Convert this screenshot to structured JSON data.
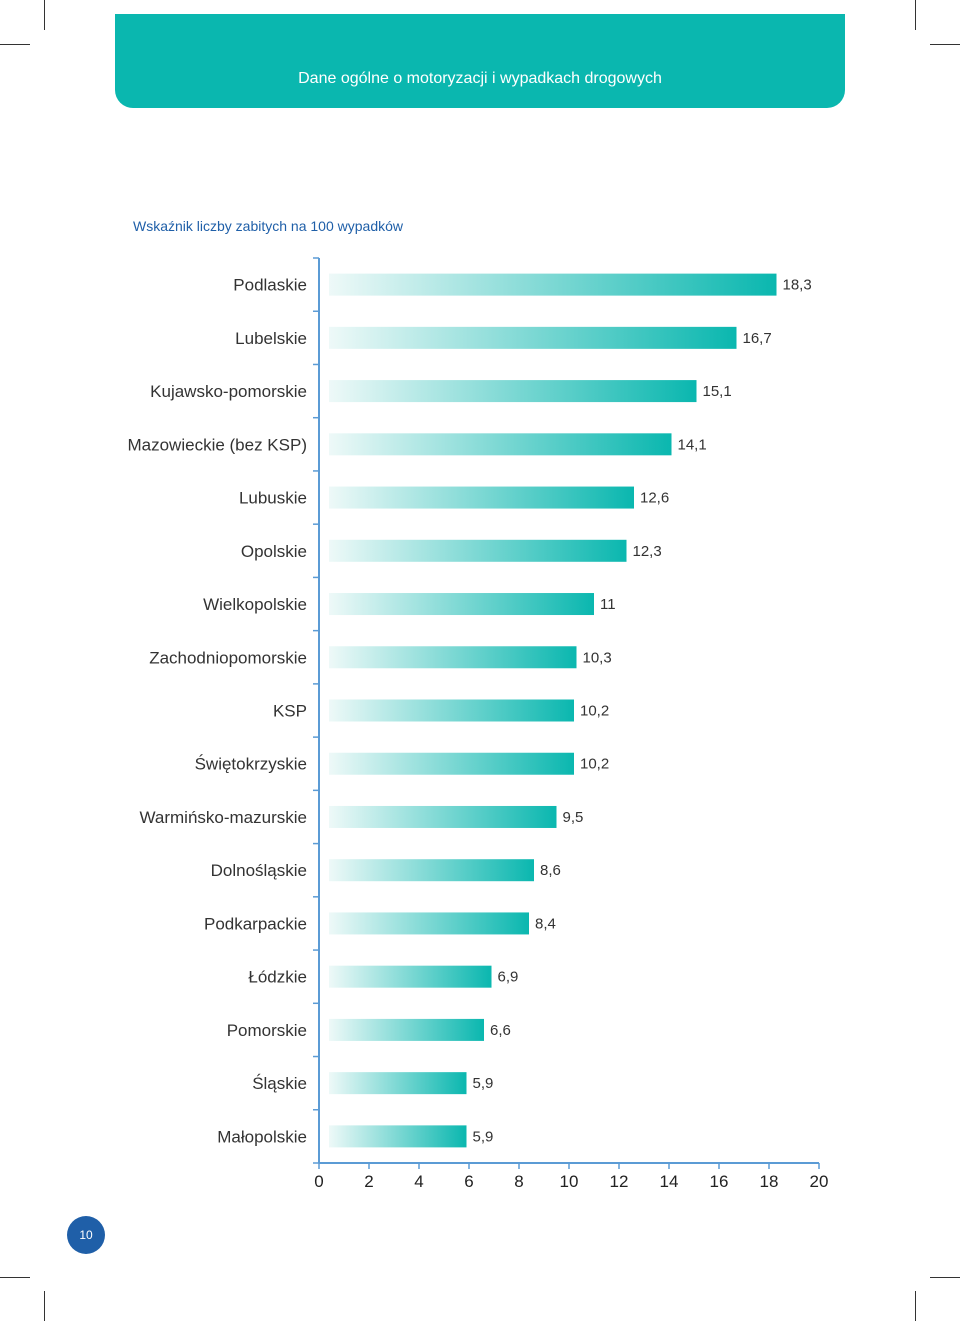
{
  "header": {
    "title": "Dane ogólne o motoryzacji i wypadkach drogowych"
  },
  "page_number": "10",
  "colors": {
    "accent": "#0ab7af",
    "bar_start": "#e9f7f6",
    "bar_end": "#0ab7af",
    "axis": "#5b9bd5",
    "title_blue": "#1f5fa8"
  },
  "chart_data": {
    "type": "bar",
    "orientation": "horizontal",
    "title": "Wskaźnik liczby zabitych na 100 wypadków",
    "categories": [
      "Podlaskie",
      "Lubelskie",
      "Kujawsko-pomorskie",
      "Mazowieckie (bez KSP)",
      "Lubuskie",
      "Opolskie",
      "Wielkopolskie",
      "Zachodniopomorskie",
      "KSP",
      "Świętokrzyskie",
      "Warmińsko-mazurskie",
      "Dolnośląskie",
      "Podkarpackie",
      "Łódzkie",
      "Pomorskie",
      "Śląskie",
      "Małopolskie"
    ],
    "values": [
      18.3,
      16.7,
      15.1,
      14.1,
      12.6,
      12.3,
      11,
      10.3,
      10.2,
      10.2,
      9.5,
      8.6,
      8.4,
      6.9,
      6.6,
      5.9,
      5.9
    ],
    "value_labels": [
      "18,3",
      "16,7",
      "15,1",
      "14,1",
      "12,6",
      "12,3",
      "11",
      "10,3",
      "10,2",
      "10,2",
      "9,5",
      "8,6",
      "8,4",
      "6,9",
      "6,6",
      "5,9",
      "5,9"
    ],
    "xlim": [
      0,
      20
    ],
    "xticks": [
      0,
      2,
      4,
      6,
      8,
      10,
      12,
      14,
      16,
      18,
      20
    ],
    "xlabel": "",
    "ylabel": "",
    "grid": false,
    "legend": "none"
  }
}
